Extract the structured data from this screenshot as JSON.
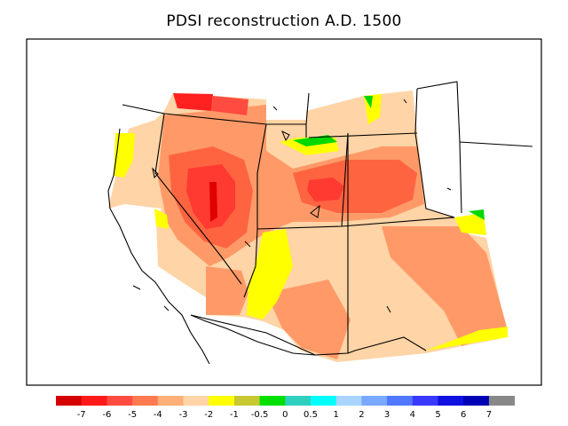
{
  "title": "PDSI reconstruction A.D. 1500",
  "colorbar": {
    "colors": [
      "#d40000",
      "#ff1a1a",
      "#ff4b40",
      "#ff7a50",
      "#ffae78",
      "#ffd4a6",
      "#ffff00",
      "#c8c832",
      "#00e000",
      "#30d0c0",
      "#00ffff",
      "#a8d4ff",
      "#78a8ff",
      "#5078ff",
      "#3838ff",
      "#1010e0",
      "#0000b4",
      "#888888"
    ],
    "tick_labels": [
      "-7",
      "-6",
      "-5",
      "-4",
      "-3",
      "-2",
      "-1",
      "-0.5",
      "0",
      "0.5",
      "1",
      "2",
      "3",
      "4",
      "5",
      "6",
      "7"
    ]
  }
}
